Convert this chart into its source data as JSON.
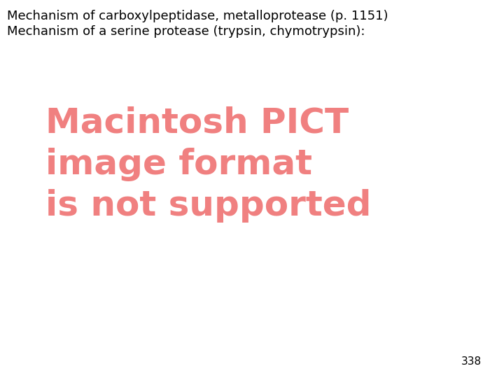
{
  "background_color": "#ffffff",
  "header_line1": "Mechanism of carboxylpeptidase, metalloprotease (p. 1151)",
  "header_line2": "Mechanism of a serine protease (trypsin, chymotrypsin):",
  "header_color": "#000000",
  "header_fontsize": 13.0,
  "header_font": "DejaVu Sans",
  "pict_line1": "Macintosh PICT",
  "pict_line2": "image format",
  "pict_line3": "is not supported",
  "pict_color": "#f08080",
  "pict_fontsize": 36,
  "pict_font": "DejaVu Sans",
  "pict_fontweight": "bold",
  "page_number": "338",
  "page_number_color": "#000000",
  "page_number_fontsize": 11,
  "page_number_font": "DejaVu Sans"
}
